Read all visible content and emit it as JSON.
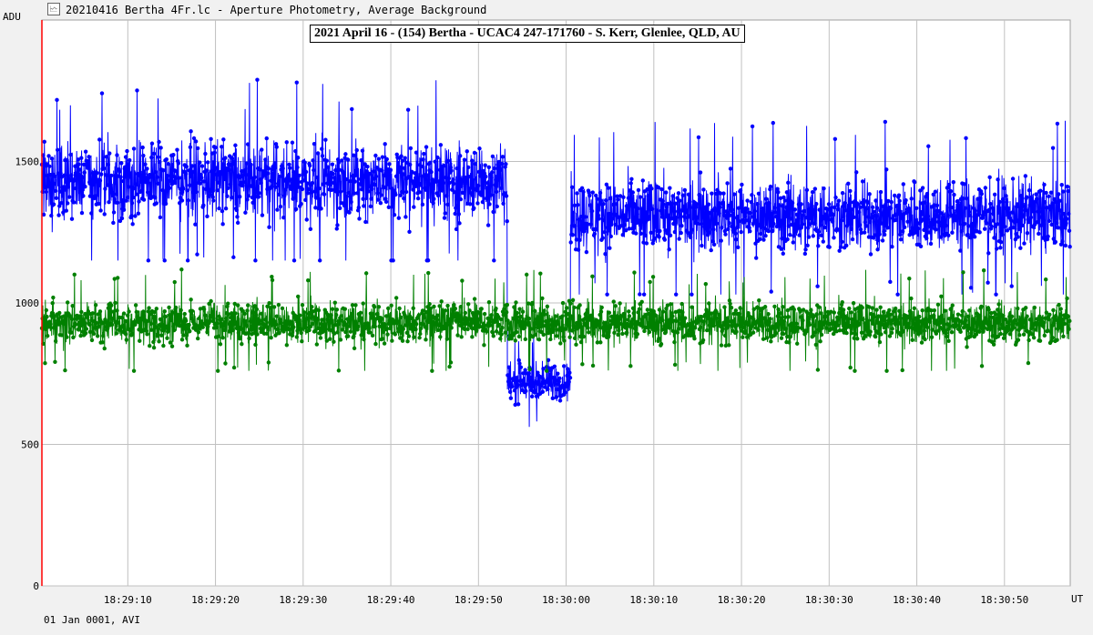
{
  "window": {
    "title": "20210416 Bertha 4Fr.lc - Aperture Photometry, Average Background"
  },
  "footer": {
    "text": "01 Jan 0001, AVI"
  },
  "chart_data": {
    "type": "line",
    "title": "2021 April 16 - (154) Bertha - UCAC4 247-171760 - S. Kerr, Glenlee, QLD, AU",
    "xlabel": "UT",
    "ylabel": "ADU",
    "ylim": [
      0,
      2000
    ],
    "yticks": [
      0,
      500,
      1000,
      1500
    ],
    "xlim": [
      "18:29:00.2",
      "18:30:57.5"
    ],
    "xticks": [
      "18:29:10",
      "18:29:20",
      "18:29:30",
      "18:29:40",
      "18:29:50",
      "18:30:00",
      "18:30:10",
      "18:30:20",
      "18:30:30",
      "18:30:40",
      "18:30:50"
    ],
    "grid": true,
    "marker": {
      "x": "18:29:00.2",
      "color": "#ff0000"
    },
    "series": [
      {
        "color": "#0000ff",
        "segments": [
          {
            "from": "18:29:00.2",
            "to": "18:29:53.3",
            "mean": 1430,
            "range": [
              1150,
              1870
            ]
          },
          {
            "from": "18:29:53.3",
            "to": "18:30:00.5",
            "mean": 720,
            "range": [
              505,
              880
            ]
          },
          {
            "from": "18:30:00.5",
            "to": "18:30:57.5",
            "mean": 1310,
            "range": [
              1030,
              1700
            ]
          }
        ]
      },
      {
        "color": "#008000",
        "segments": [
          {
            "from": "18:29:00.2",
            "to": "18:30:57.5",
            "mean": 930,
            "range": [
              760,
              1140
            ]
          }
        ]
      }
    ]
  }
}
